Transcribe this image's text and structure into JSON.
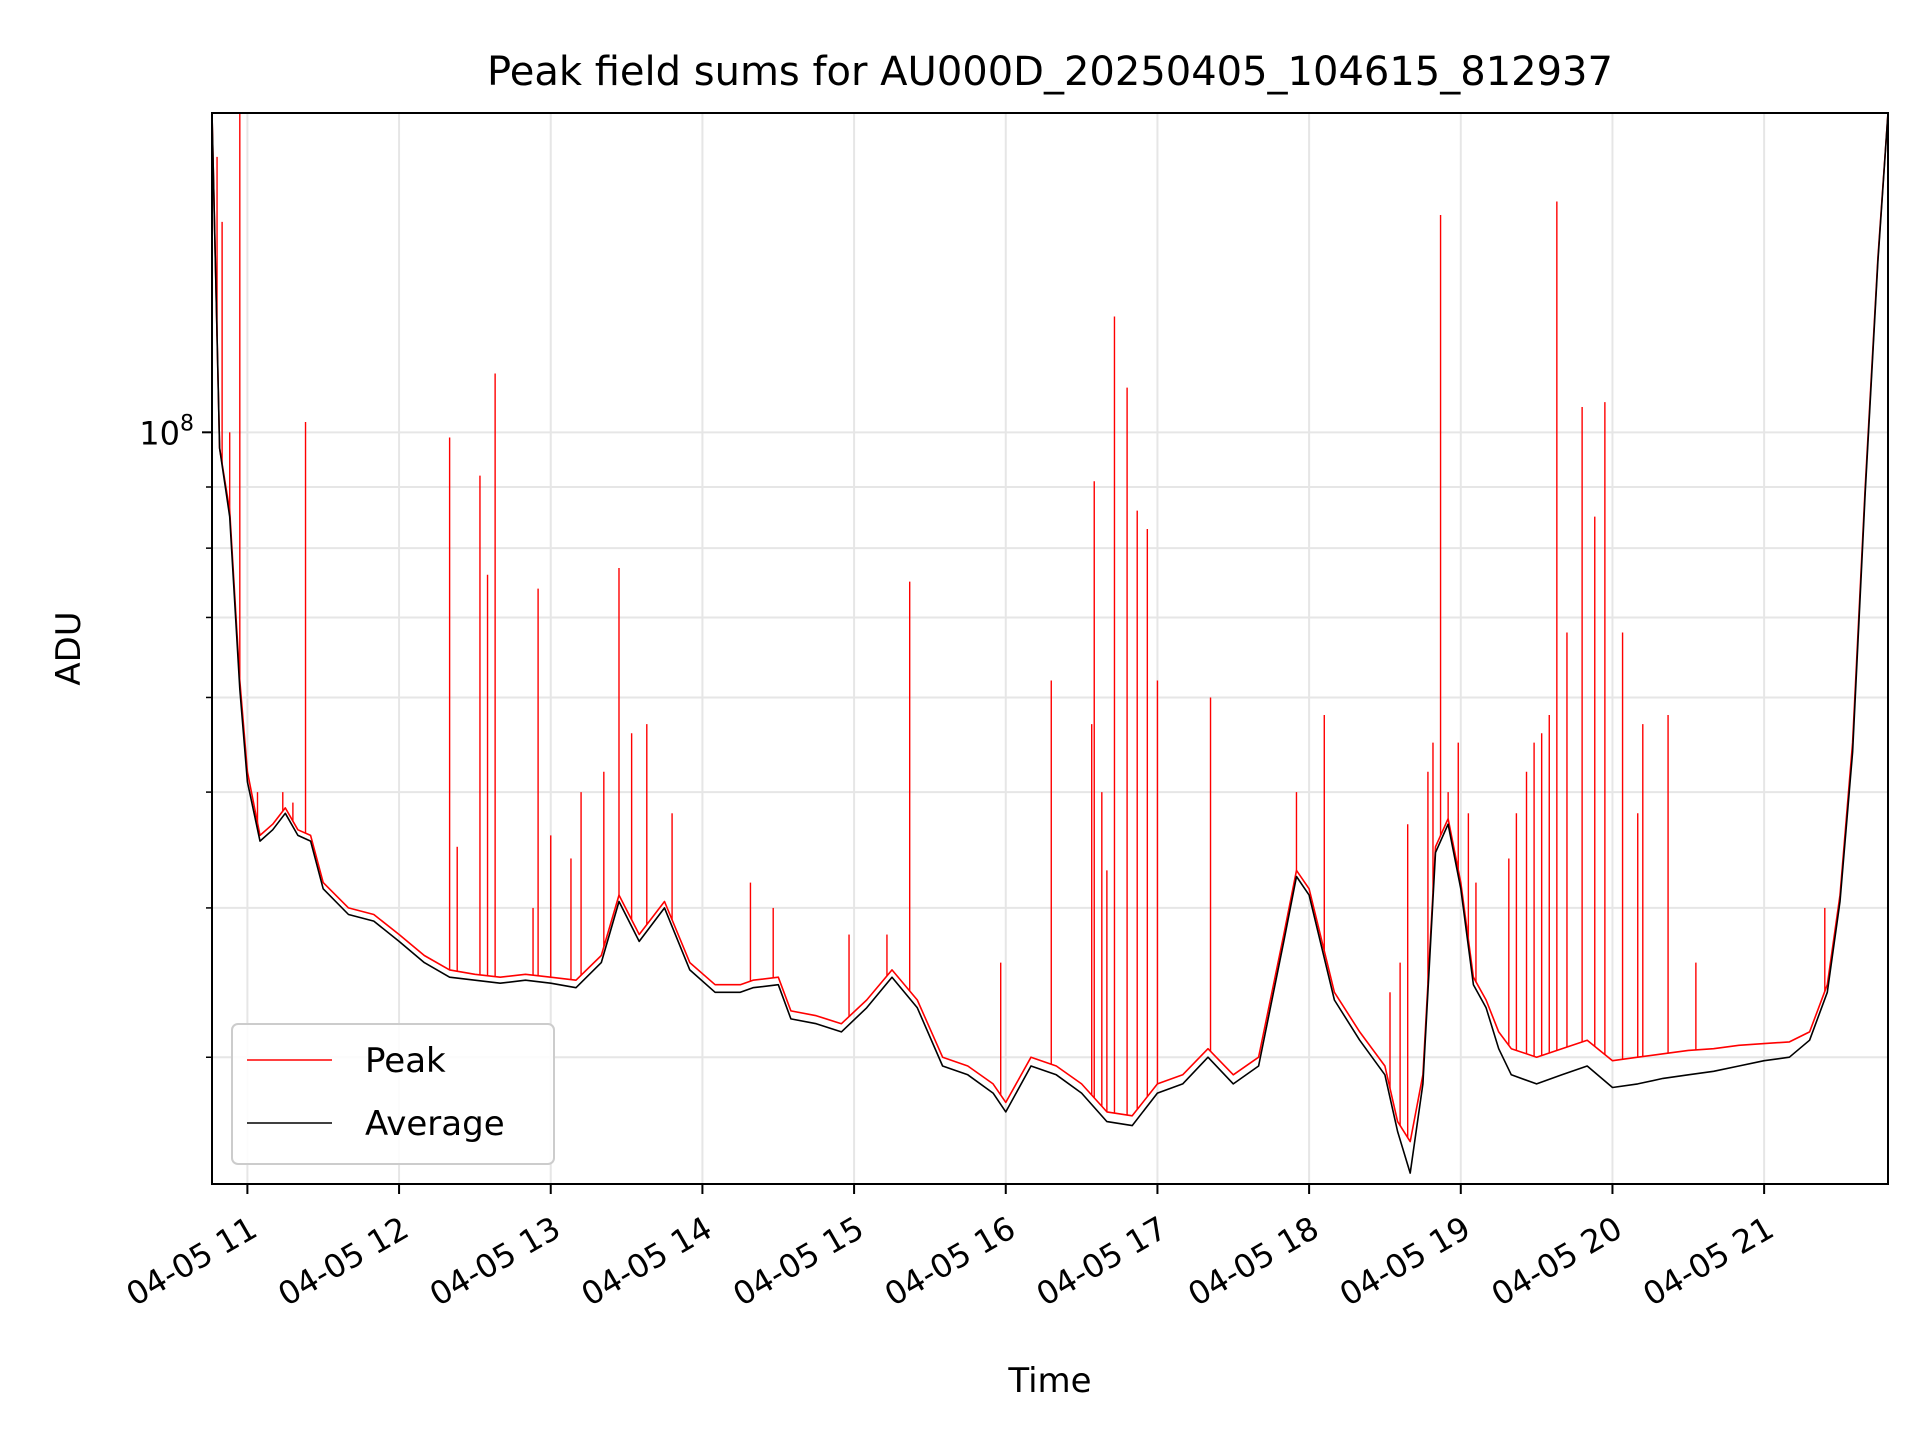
{
  "chart_data": {
    "type": "line",
    "title": "Peak field sums for AU000D_20250405_104615_812937",
    "xlabel": "Time",
    "ylabel": "ADU",
    "y_scale": "log",
    "grid": true,
    "legend_position": "lower-left",
    "x_ticks": [
      "04-05 11",
      "04-05 12",
      "04-05 13",
      "04-05 14",
      "04-05 15",
      "04-05 16",
      "04-05 17",
      "04-05 18",
      "04-05 19",
      "04-05 20",
      "04-05 21"
    ],
    "y_tick_labels": [
      {
        "base": "10",
        "exp": "8",
        "value": 100000000
      }
    ],
    "xlim": [
      "04-05 10:46",
      "04-05 21:49"
    ],
    "ylim": [
      23500000,
      185000000
    ],
    "series": [
      {
        "name": "Peak",
        "color": "#ff0000",
        "points": [
          [
            "04-05 10:46",
            185000000
          ],
          [
            "04-05 10:49",
            97000000
          ],
          [
            "04-05 10:53",
            86000000
          ],
          [
            "04-05 10:57",
            62000000
          ],
          [
            "04-05 11:00",
            52000000
          ],
          [
            "04-05 11:05",
            46000000
          ],
          [
            "04-05 11:10",
            47000000
          ],
          [
            "04-05 11:15",
            48500000
          ],
          [
            "04-05 11:20",
            46500000
          ],
          [
            "04-05 11:25",
            46000000
          ],
          [
            "04-05 11:30",
            42000000
          ],
          [
            "04-05 11:40",
            40000000
          ],
          [
            "04-05 11:50",
            39500000
          ],
          [
            "04-05 12:00",
            38000000
          ],
          [
            "04-05 12:10",
            36500000
          ],
          [
            "04-05 12:20",
            35500000
          ],
          [
            "04-05 12:30",
            35200000
          ],
          [
            "04-05 12:40",
            35000000
          ],
          [
            "04-05 12:50",
            35200000
          ],
          [
            "04-05 13:00",
            35000000
          ],
          [
            "04-05 13:10",
            34800000
          ],
          [
            "04-05 13:20",
            36500000
          ],
          [
            "04-05 13:27",
            41000000
          ],
          [
            "04-05 13:35",
            38000000
          ],
          [
            "04-05 13:45",
            40500000
          ],
          [
            "04-05 13:55",
            36000000
          ],
          [
            "04-05 14:05",
            34500000
          ],
          [
            "04-05 14:15",
            34500000
          ],
          [
            "04-05 14:20",
            34800000
          ],
          [
            "04-05 14:30",
            35000000
          ],
          [
            "04-05 14:35",
            32800000
          ],
          [
            "04-05 14:45",
            32500000
          ],
          [
            "04-05 14:55",
            32000000
          ],
          [
            "04-05 15:05",
            33500000
          ],
          [
            "04-05 15:15",
            35500000
          ],
          [
            "04-05 15:25",
            33500000
          ],
          [
            "04-05 15:35",
            30000000
          ],
          [
            "04-05 15:45",
            29500000
          ],
          [
            "04-05 15:55",
            28500000
          ],
          [
            "04-05 16:00",
            27500000
          ],
          [
            "04-05 16:10",
            30000000
          ],
          [
            "04-05 16:20",
            29500000
          ],
          [
            "04-05 16:30",
            28500000
          ],
          [
            "04-05 16:40",
            27000000
          ],
          [
            "04-05 16:50",
            26800000
          ],
          [
            "04-05 17:00",
            28500000
          ],
          [
            "04-05 17:10",
            29000000
          ],
          [
            "04-05 17:20",
            30500000
          ],
          [
            "04-05 17:30",
            29000000
          ],
          [
            "04-05 17:40",
            30000000
          ],
          [
            "04-05 17:50",
            38000000
          ],
          [
            "04-05 17:55",
            43000000
          ],
          [
            "04-05 18:00",
            41500000
          ],
          [
            "04-05 18:10",
            34000000
          ],
          [
            "04-05 18:20",
            31500000
          ],
          [
            "04-05 18:30",
            29500000
          ],
          [
            "04-05 18:35",
            26500000
          ],
          [
            "04-05 18:40",
            25500000
          ],
          [
            "04-05 18:45",
            29000000
          ],
          [
            "04-05 18:50",
            45000000
          ],
          [
            "04-05 18:55",
            47500000
          ],
          [
            "04-05 19:00",
            42000000
          ],
          [
            "04-05 19:05",
            35000000
          ],
          [
            "04-05 19:10",
            33500000
          ],
          [
            "04-05 19:15",
            31500000
          ],
          [
            "04-05 19:20",
            30500000
          ],
          [
            "04-05 19:30",
            30000000
          ],
          [
            "04-05 19:40",
            30500000
          ],
          [
            "04-05 19:50",
            31000000
          ],
          [
            "04-05 20:00",
            29800000
          ],
          [
            "04-05 20:10",
            30000000
          ],
          [
            "04-05 20:20",
            30200000
          ],
          [
            "04-05 20:30",
            30400000
          ],
          [
            "04-05 20:40",
            30500000
          ],
          [
            "04-05 20:50",
            30700000
          ],
          [
            "04-05 21:00",
            30800000
          ],
          [
            "04-05 21:10",
            30900000
          ],
          [
            "04-05 21:18",
            31500000
          ],
          [
            "04-05 21:25",
            34500000
          ],
          [
            "04-05 21:30",
            41000000
          ],
          [
            "04-05 21:35",
            55000000
          ],
          [
            "04-05 21:40",
            90000000
          ],
          [
            "04-05 21:45",
            140000000
          ],
          [
            "04-05 21:49",
            185000000
          ]
        ]
      },
      {
        "name": "Average",
        "color": "#000000",
        "points": [
          [
            "04-05 10:46",
            185000000
          ],
          [
            "04-05 10:49",
            97000000
          ],
          [
            "04-05 10:53",
            85000000
          ],
          [
            "04-05 10:57",
            61000000
          ],
          [
            "04-05 11:00",
            51000000
          ],
          [
            "04-05 11:05",
            45500000
          ],
          [
            "04-05 11:10",
            46500000
          ],
          [
            "04-05 11:15",
            48000000
          ],
          [
            "04-05 11:20",
            46000000
          ],
          [
            "04-05 11:25",
            45500000
          ],
          [
            "04-05 11:30",
            41500000
          ],
          [
            "04-05 11:40",
            39500000
          ],
          [
            "04-05 11:50",
            39000000
          ],
          [
            "04-05 12:00",
            37500000
          ],
          [
            "04-05 12:10",
            36000000
          ],
          [
            "04-05 12:20",
            35000000
          ],
          [
            "04-05 12:30",
            34800000
          ],
          [
            "04-05 12:40",
            34600000
          ],
          [
            "04-05 12:50",
            34800000
          ],
          [
            "04-05 13:00",
            34600000
          ],
          [
            "04-05 13:10",
            34300000
          ],
          [
            "04-05 13:20",
            36000000
          ],
          [
            "04-05 13:27",
            40500000
          ],
          [
            "04-05 13:35",
            37500000
          ],
          [
            "04-05 13:45",
            40000000
          ],
          [
            "04-05 13:55",
            35500000
          ],
          [
            "04-05 14:05",
            34000000
          ],
          [
            "04-05 14:15",
            34000000
          ],
          [
            "04-05 14:20",
            34300000
          ],
          [
            "04-05 14:30",
            34500000
          ],
          [
            "04-05 14:35",
            32300000
          ],
          [
            "04-05 14:45",
            32000000
          ],
          [
            "04-05 14:55",
            31500000
          ],
          [
            "04-05 15:05",
            33000000
          ],
          [
            "04-05 15:15",
            35000000
          ],
          [
            "04-05 15:25",
            33000000
          ],
          [
            "04-05 15:35",
            29500000
          ],
          [
            "04-05 15:45",
            29000000
          ],
          [
            "04-05 15:55",
            28000000
          ],
          [
            "04-05 16:00",
            27000000
          ],
          [
            "04-05 16:10",
            29500000
          ],
          [
            "04-05 16:20",
            29000000
          ],
          [
            "04-05 16:30",
            28000000
          ],
          [
            "04-05 16:40",
            26500000
          ],
          [
            "04-05 16:50",
            26300000
          ],
          [
            "04-05 17:00",
            28000000
          ],
          [
            "04-05 17:10",
            28500000
          ],
          [
            "04-05 17:20",
            30000000
          ],
          [
            "04-05 17:30",
            28500000
          ],
          [
            "04-05 17:40",
            29500000
          ],
          [
            "04-05 17:50",
            37500000
          ],
          [
            "04-05 17:55",
            42500000
          ],
          [
            "04-05 18:00",
            41000000
          ],
          [
            "04-05 18:10",
            33500000
          ],
          [
            "04-05 18:20",
            31000000
          ],
          [
            "04-05 18:30",
            29000000
          ],
          [
            "04-05 18:35",
            26000000
          ],
          [
            "04-05 18:40",
            24000000
          ],
          [
            "04-05 18:45",
            28500000
          ],
          [
            "04-05 18:50",
            44500000
          ],
          [
            "04-05 18:55",
            47000000
          ],
          [
            "04-05 19:00",
            41500000
          ],
          [
            "04-05 19:05",
            34500000
          ],
          [
            "04-05 19:10",
            33000000
          ],
          [
            "04-05 19:15",
            30500000
          ],
          [
            "04-05 19:20",
            29000000
          ],
          [
            "04-05 19:30",
            28500000
          ],
          [
            "04-05 19:40",
            29000000
          ],
          [
            "04-05 19:50",
            29500000
          ],
          [
            "04-05 20:00",
            28300000
          ],
          [
            "04-05 20:10",
            28500000
          ],
          [
            "04-05 20:20",
            28800000
          ],
          [
            "04-05 20:30",
            29000000
          ],
          [
            "04-05 20:40",
            29200000
          ],
          [
            "04-05 20:50",
            29500000
          ],
          [
            "04-05 21:00",
            29800000
          ],
          [
            "04-05 21:10",
            30000000
          ],
          [
            "04-05 21:18",
            31000000
          ],
          [
            "04-05 21:25",
            34000000
          ],
          [
            "04-05 21:30",
            40500000
          ],
          [
            "04-05 21:35",
            54000000
          ],
          [
            "04-05 21:40",
            89000000
          ],
          [
            "04-05 21:45",
            139000000
          ],
          [
            "04-05 21:49",
            185000000
          ]
        ]
      }
    ],
    "peak_spikes": [
      [
        "04-05 10:48",
        170000000
      ],
      [
        "04-05 10:50",
        150000000
      ],
      [
        "04-05 10:53",
        100000000
      ],
      [
        "04-05 10:57",
        185000000
      ],
      [
        "04-05 11:04",
        50000000
      ],
      [
        "04-05 11:14",
        50000000
      ],
      [
        "04-05 11:18",
        49000000
      ],
      [
        "04-05 11:23",
        102000000
      ],
      [
        "04-05 12:20",
        99000000
      ],
      [
        "04-05 12:23",
        45000000
      ],
      [
        "04-05 12:32",
        92000000
      ],
      [
        "04-05 12:35",
        76000000
      ],
      [
        "04-05 12:38",
        112000000
      ],
      [
        "04-05 12:53",
        40000000
      ],
      [
        "04-05 12:55",
        74000000
      ],
      [
        "04-05 13:00",
        46000000
      ],
      [
        "04-05 13:08",
        44000000
      ],
      [
        "04-05 13:12",
        50000000
      ],
      [
        "04-05 13:21",
        52000000
      ],
      [
        "04-05 13:27",
        77000000
      ],
      [
        "04-05 13:32",
        56000000
      ],
      [
        "04-05 13:38",
        57000000
      ],
      [
        "04-05 13:48",
        48000000
      ],
      [
        "04-05 14:19",
        42000000
      ],
      [
        "04-05 14:28",
        40000000
      ],
      [
        "04-05 14:58",
        38000000
      ],
      [
        "04-05 15:13",
        38000000
      ],
      [
        "04-05 15:22",
        75000000
      ],
      [
        "04-05 15:58",
        36000000
      ],
      [
        "04-05 16:18",
        62000000
      ],
      [
        "04-05 16:34",
        57000000
      ],
      [
        "04-05 16:35",
        91000000
      ],
      [
        "04-05 16:38",
        50000000
      ],
      [
        "04-05 16:40",
        43000000
      ],
      [
        "04-05 16:43",
        125000000
      ],
      [
        "04-05 16:48",
        109000000
      ],
      [
        "04-05 16:52",
        86000000
      ],
      [
        "04-05 16:56",
        83000000
      ],
      [
        "04-05 17:00",
        62000000
      ],
      [
        "04-05 17:21",
        60000000
      ],
      [
        "04-05 17:55",
        50000000
      ],
      [
        "04-05 18:06",
        58000000
      ],
      [
        "04-05 18:32",
        34000000
      ],
      [
        "04-05 18:36",
        36000000
      ],
      [
        "04-05 18:39",
        47000000
      ],
      [
        "04-05 18:47",
        52000000
      ],
      [
        "04-05 18:49",
        55000000
      ],
      [
        "04-05 18:52",
        152000000
      ],
      [
        "04-05 18:55",
        50000000
      ],
      [
        "04-05 18:59",
        55000000
      ],
      [
        "04-05 19:03",
        48000000
      ],
      [
        "04-05 19:06",
        42000000
      ],
      [
        "04-05 19:19",
        44000000
      ],
      [
        "04-05 19:22",
        48000000
      ],
      [
        "04-05 19:26",
        52000000
      ],
      [
        "04-05 19:29",
        55000000
      ],
      [
        "04-05 19:32",
        56000000
      ],
      [
        "04-05 19:35",
        58000000
      ],
      [
        "04-05 19:38",
        156000000
      ],
      [
        "04-05 19:42",
        68000000
      ],
      [
        "04-05 19:48",
        105000000
      ],
      [
        "04-05 19:53",
        85000000
      ],
      [
        "04-05 19:57",
        106000000
      ],
      [
        "04-05 20:04",
        68000000
      ],
      [
        "04-05 20:10",
        48000000
      ],
      [
        "04-05 20:12",
        57000000
      ],
      [
        "04-05 20:22",
        58000000
      ],
      [
        "04-05 20:33",
        36000000
      ],
      [
        "04-05 21:24",
        40000000
      ]
    ]
  }
}
